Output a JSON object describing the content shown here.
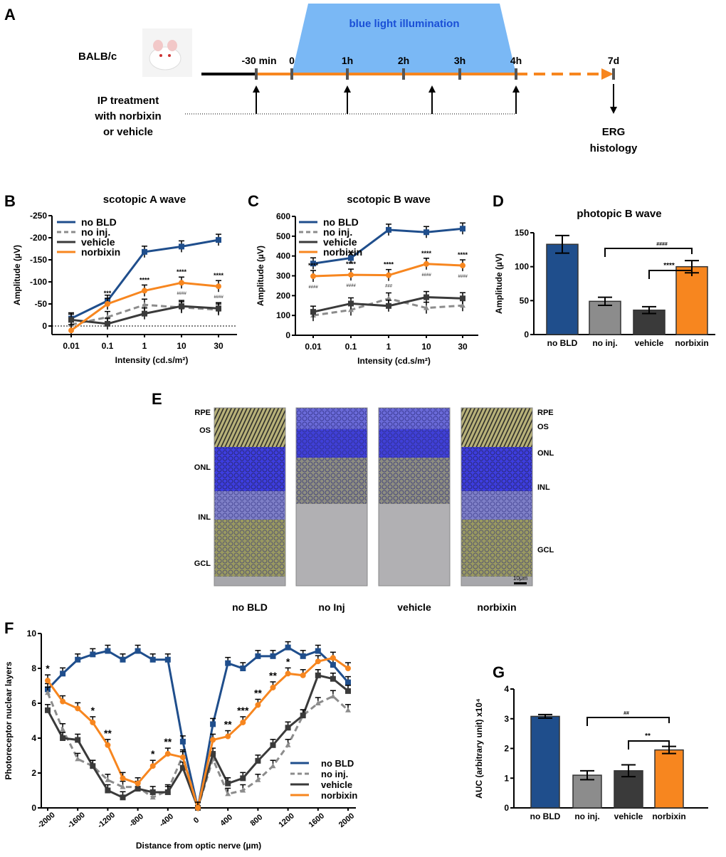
{
  "panel_labels": [
    "A",
    "B",
    "C",
    "D",
    "E",
    "F",
    "G"
  ],
  "timeline": {
    "strain": "BALB/c",
    "illumination": "blue light illumination",
    "ticks": [
      "-30 min",
      "0",
      "1h",
      "2h",
      "3h",
      "4h",
      "7d"
    ],
    "treatment": [
      "IP treatment",
      "with norbixin",
      "or vehicle"
    ],
    "endpoints": [
      "ERG",
      "histology"
    ]
  },
  "histology": {
    "groups": [
      "no BLD",
      "no Inj",
      "vehicle",
      "norbixin"
    ],
    "left_layers": [
      "RPE",
      "OS",
      "ONL",
      "INL",
      "GCL"
    ],
    "right_layers": [
      "RPE",
      "OS",
      "ONL",
      "INL",
      "GCL"
    ],
    "scale_bar": "10μm"
  },
  "colors": {
    "no_bld": "#1f4e8c",
    "no_inj": "#8c8c8c",
    "vehicle": "#3a3a3a",
    "norbixin": "#f7861f"
  },
  "chart_data": [
    {
      "id": "B",
      "type": "line",
      "title": "scotopic A wave",
      "xlabel": "Intensity (cd.s/m²)",
      "ylabel": "Amplitude (µV)",
      "categories": [
        "0.01",
        "0.1",
        "1",
        "10",
        "30"
      ],
      "ylim": [
        0,
        -250
      ],
      "yticks": [
        "-250",
        "-200",
        "-150",
        "-100",
        "-50",
        "0"
      ],
      "series": [
        {
          "name": "no BLD",
          "values": [
            -17,
            -57,
            -168,
            -180,
            -195
          ]
        },
        {
          "name": "no inj.",
          "values": [
            -3,
            -20,
            -48,
            -42,
            -37
          ]
        },
        {
          "name": "vehicle",
          "values": [
            -14,
            -5,
            -28,
            -45,
            -40
          ]
        },
        {
          "name": "norbixin",
          "values": [
            10,
            -50,
            -80,
            -98,
            -90
          ]
        }
      ],
      "annotations": [
        "",
        "***",
        "****",
        "****",
        "****"
      ],
      "annotations2": [
        "",
        "",
        "",
        "####",
        "####"
      ],
      "legend": "top-left"
    },
    {
      "id": "C",
      "type": "line",
      "title": "scotopic B wave",
      "xlabel": "Intensity (cd.s/m²)",
      "ylabel": "Amplitude (µV)",
      "categories": [
        "0.01",
        "0.1",
        "1",
        "10",
        "30"
      ],
      "ylim": [
        0,
        600
      ],
      "yticks": [
        "0",
        "100",
        "200",
        "300",
        "400",
        "500",
        "600"
      ],
      "series": [
        {
          "name": "no BLD",
          "values": [
            362,
            390,
            532,
            520,
            538
          ]
        },
        {
          "name": "no inj.",
          "values": [
            100,
            128,
            185,
            138,
            150
          ]
        },
        {
          "name": "vehicle",
          "values": [
            118,
            160,
            148,
            192,
            186
          ]
        },
        {
          "name": "norbixin",
          "values": [
            298,
            305,
            303,
            360,
            352
          ]
        }
      ],
      "annotations": [
        "****",
        "****",
        "****",
        "****",
        "****"
      ],
      "annotations2": [
        "####",
        "####",
        "###",
        "####",
        "####"
      ],
      "legend": "top-left"
    },
    {
      "id": "D",
      "type": "bar",
      "title": "photopic B wave",
      "ylabel": "Amplitude (µV)",
      "categories": [
        "no BLD",
        "no inj.",
        "vehicle",
        "norbixin"
      ],
      "values": [
        133,
        49,
        36,
        100
      ],
      "errors": [
        13,
        6,
        5,
        9
      ],
      "ylim": [
        0,
        150
      ],
      "yticks": [
        "0",
        "50",
        "100",
        "150"
      ],
      "brackets": [
        "####",
        "****"
      ]
    },
    {
      "id": "F",
      "type": "line",
      "xlabel": "Distance from optic nerve (µm)",
      "ylabel": "Photoreceptor nuclear layers",
      "x": [
        -2000,
        -1800,
        -1600,
        -1400,
        -1200,
        -1000,
        -800,
        -600,
        -400,
        -200,
        0,
        200,
        400,
        600,
        800,
        1000,
        1200,
        1400,
        1600,
        1800,
        2000
      ],
      "xticks": [
        "-2000",
        "-1600",
        "-1200",
        "-800",
        "-400",
        "0",
        "400",
        "800",
        "1200",
        "1600",
        "2000"
      ],
      "ylim": [
        0,
        10
      ],
      "yticks": [
        "0",
        "2",
        "4",
        "6",
        "8",
        "10"
      ],
      "series": [
        {
          "name": "no BLD",
          "values": [
            6.8,
            7.7,
            8.5,
            8.8,
            9.0,
            8.5,
            9.0,
            8.5,
            8.5,
            3.8,
            0,
            4.8,
            8.3,
            8.0,
            8.7,
            8.7,
            9.2,
            8.7,
            9.0,
            8.2,
            7.2
          ]
        },
        {
          "name": "no inj.",
          "values": [
            6.6,
            4.5,
            2.8,
            2.4,
            1.6,
            1.2,
            1.2,
            0.6,
            1.0,
            3.0,
            0,
            2.8,
            0.8,
            1.0,
            1.6,
            2.4,
            3.6,
            5.3,
            6.0,
            6.4,
            5.6
          ]
        },
        {
          "name": "vehicle",
          "values": [
            5.6,
            4.0,
            3.9,
            2.4,
            1.0,
            0.6,
            1.1,
            0.9,
            0.9,
            2.3,
            0,
            3.1,
            1.4,
            1.7,
            2.7,
            3.6,
            4.6,
            5.3,
            7.6,
            7.4,
            6.7
          ]
        },
        {
          "name": "norbixin",
          "values": [
            7.3,
            6.1,
            5.7,
            4.9,
            3.6,
            1.7,
            1.4,
            2.4,
            3.1,
            2.9,
            0,
            3.9,
            4.1,
            4.9,
            5.9,
            6.9,
            7.7,
            7.6,
            8.4,
            8.6,
            8.0
          ]
        }
      ],
      "annotations": [
        "*",
        "",
        "",
        "*",
        "**",
        "",
        "",
        "*",
        "**",
        "",
        "",
        "",
        "**",
        "***",
        "**",
        "**",
        "*",
        "",
        "",
        "",
        ""
      ],
      "legend": "bottom-right"
    },
    {
      "id": "G",
      "type": "bar",
      "ylabel": "AUC (arbitrary unit) x10⁴",
      "categories": [
        "no BLD",
        "no inj.",
        "vehicle",
        "norbixin"
      ],
      "values": [
        3.08,
        1.1,
        1.25,
        1.95
      ],
      "errors": [
        0.06,
        0.15,
        0.2,
        0.12
      ],
      "ylim": [
        0,
        4
      ],
      "yticks": [
        "0",
        "1",
        "2",
        "3",
        "4"
      ],
      "brackets": [
        "##",
        "**"
      ]
    }
  ]
}
